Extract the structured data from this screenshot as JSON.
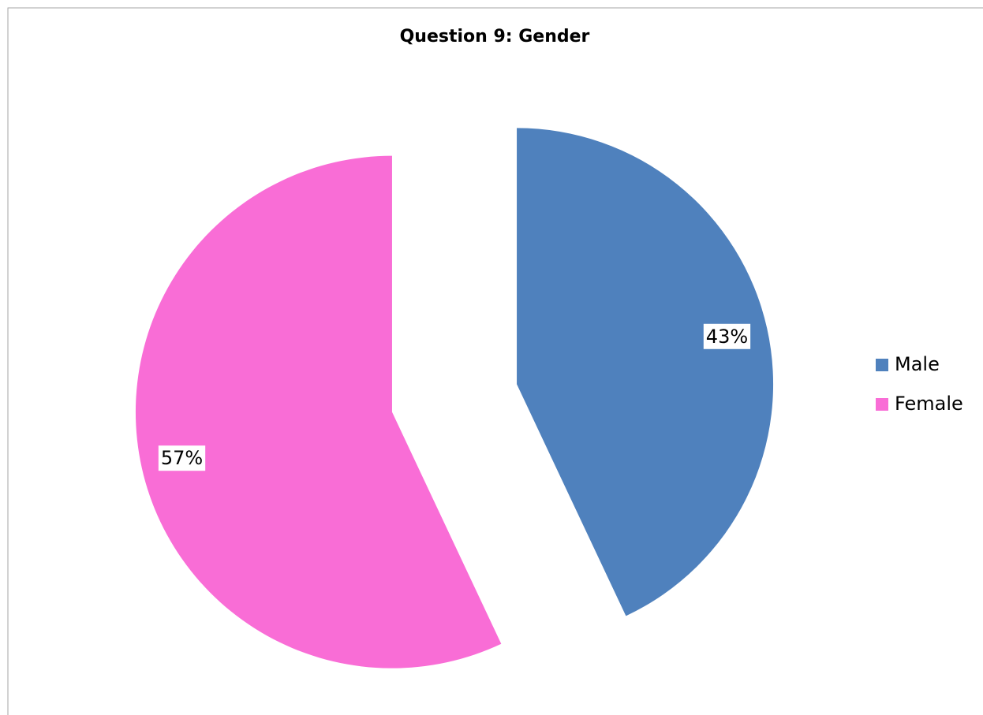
{
  "chart_data": {
    "type": "pie",
    "title": "Question 9:  Gender",
    "categories": [
      "Male",
      "Female"
    ],
    "values": [
      43,
      57
    ],
    "value_labels": [
      "43%",
      "57%"
    ],
    "colors": [
      "#4f81bd",
      "#f96dd6"
    ],
    "exploded": true,
    "legend": "right"
  }
}
